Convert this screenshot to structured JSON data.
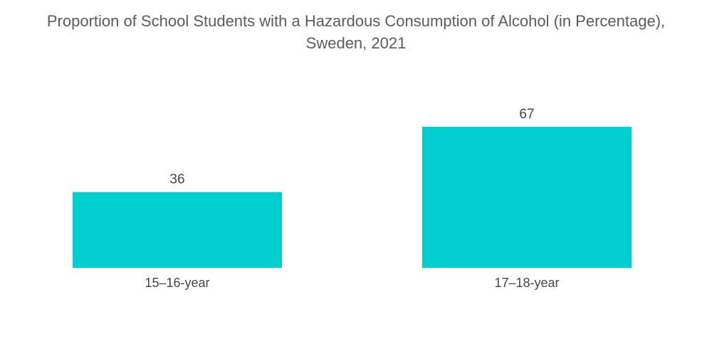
{
  "chart_data": {
    "type": "bar",
    "title_line1": "Proportion of School Students with a Hazardous Consumption of Alcohol (in Percentage),",
    "title_line2": "Sweden, 2021",
    "categories": [
      "15–16-year",
      "17–18-year"
    ],
    "values": [
      36,
      67
    ],
    "xlabel": "",
    "ylabel": "",
    "ylim": [
      0,
      67
    ],
    "grid": false,
    "bar_color": "#00ced1"
  }
}
